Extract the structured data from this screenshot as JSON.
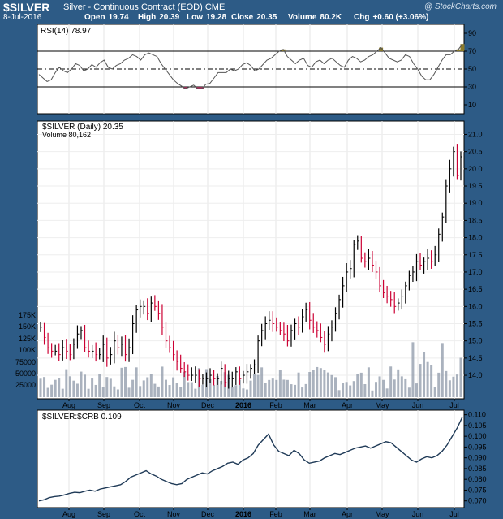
{
  "header": {
    "symbol": "$SILVER",
    "description": "Silver - Continuous Contract (EOD)",
    "exchange": "CME",
    "watermark": "@ StockCharts.com",
    "date": "8-Jul-2016",
    "open_label": "Open",
    "open": "19.74",
    "high_label": "High",
    "high": "20.39",
    "low_label": "Low",
    "low": "19.28",
    "close_label": "Close",
    "close": "20.35",
    "volume_label": "Volume",
    "volume": "80.2K",
    "chg_label": "Chg",
    "chg": "+0.60 (+3.06%)"
  },
  "colors": {
    "background": "#2d5b86",
    "up": "#000000",
    "down": "#cc0033",
    "volume": "#8e98a8",
    "rsi_over": "#8a7a2a",
    "rsi_under": "#a0305a",
    "ratio_line": "#1f3a57"
  },
  "chart_data": [
    {
      "panel": "rsi",
      "type": "line",
      "title": "RSI(14) 78.97",
      "ylim": [
        0,
        100
      ],
      "yticks": [
        "90",
        "70",
        "50",
        "30",
        "10"
      ],
      "reference_lines": [
        70,
        50,
        30
      ],
      "series": [
        {
          "name": "RSI(14)",
          "values": [
            44,
            40,
            36,
            38,
            46,
            52,
            48,
            46,
            50,
            56,
            54,
            48,
            50,
            55,
            52,
            57,
            60,
            52,
            50,
            54,
            56,
            60,
            62,
            66,
            64,
            60,
            66,
            68,
            66,
            64,
            56,
            50,
            44,
            38,
            34,
            31,
            28,
            30,
            32,
            28,
            28,
            33,
            34,
            40,
            46,
            46,
            46,
            50,
            48,
            50,
            55,
            57,
            54,
            48,
            50,
            55,
            60,
            62,
            66,
            70,
            72,
            64,
            60,
            56,
            60,
            62,
            54,
            52,
            58,
            60,
            56,
            60,
            62,
            58,
            54,
            52,
            60,
            64,
            62,
            58,
            60,
            64,
            66,
            70,
            74,
            68,
            62,
            60,
            58,
            60,
            66,
            64,
            56,
            50,
            42,
            38,
            38,
            44,
            52,
            60,
            66,
            66,
            70,
            72,
            78
          ]
        }
      ],
      "xticks": [
        "Aug",
        "Sep",
        "Oct",
        "Nov",
        "Dec",
        "2016",
        "Feb",
        "Mar",
        "Apr",
        "May",
        "Jun",
        "Jul"
      ]
    },
    {
      "panel": "price",
      "type": "ohlc",
      "title": "$SILVER (Daily) 20.35",
      "ylim": [
        13.6,
        21.2
      ],
      "yticks": [
        "21.0",
        "20.5",
        "20.0",
        "19.5",
        "19.0",
        "18.5",
        "18.0",
        "17.5",
        "17.0",
        "16.5",
        "16.0",
        "15.5",
        "15.0",
        "14.5",
        "14.0"
      ],
      "xticks": [
        "Aug",
        "Sep",
        "Oct",
        "Nov",
        "Dec",
        "2016",
        "Feb",
        "Mar",
        "Apr",
        "May",
        "Jun",
        "Jul"
      ],
      "close": [
        15.4,
        15.1,
        14.8,
        14.7,
        14.7,
        14.6,
        14.8,
        14.7,
        14.6,
        14.9,
        15.2,
        15.3,
        14.8,
        14.7,
        14.7,
        14.6,
        14.6,
        14.9,
        14.5,
        14.6,
        15.0,
        14.8,
        14.9,
        14.6,
        14.8,
        15.5,
        15.9,
        16.0,
        16.0,
        15.8,
        16.1,
        16.0,
        15.8,
        15.4,
        15.0,
        14.8,
        14.6,
        14.4,
        14.2,
        14.1,
        14.0,
        14.0,
        14.0,
        13.9,
        13.9,
        13.9,
        14.0,
        13.9,
        13.9,
        14.2,
        13.8,
        13.9,
        13.9,
        14.1,
        13.9,
        14.0,
        14.1,
        14.2,
        14.3,
        15.0,
        15.3,
        15.5,
        15.6,
        15.5,
        15.4,
        15.3,
        15.2,
        15.0,
        15.3,
        15.5,
        15.4,
        15.7,
        15.9,
        15.6,
        15.4,
        15.3,
        15.1,
        14.9,
        15.2,
        15.4,
        15.8,
        16.2,
        16.6,
        17.0,
        17.1,
        17.8,
        17.9,
        17.4,
        17.3,
        17.4,
        17.2,
        17.0,
        16.6,
        16.4,
        16.3,
        16.2,
        16.0,
        16.1,
        16.3,
        16.6,
        16.9,
        17.0,
        17.3,
        17.2,
        17.3,
        17.4,
        17.3,
        17.5,
        18.1,
        18.6,
        19.5,
        20.0,
        20.5,
        19.8,
        20.35
      ],
      "volume": {
        "label": "Volume 80,162",
        "ylim": [
          0,
          175000
        ],
        "yticks": [
          "175K",
          "150K",
          "125K",
          "100K",
          "75000",
          "50000",
          "25000"
        ]
      }
    },
    {
      "panel": "ratio",
      "type": "line",
      "title": "$SILVER:$CRB 0.109",
      "ylim": [
        0.068,
        0.111
      ],
      "yticks": [
        "0.110",
        "0.105",
        "0.100",
        "0.095",
        "0.090",
        "0.085",
        "0.080",
        "0.075",
        "0.070"
      ],
      "xticks": [
        "Aug",
        "Sep",
        "Oct",
        "Nov",
        "Dec",
        "2016",
        "Feb",
        "Mar",
        "Apr",
        "May",
        "Jun",
        "Jul"
      ],
      "series": [
        {
          "name": "$SILVER:$CRB",
          "values": [
            0.07,
            0.0705,
            0.0715,
            0.072,
            0.0722,
            0.0728,
            0.0735,
            0.074,
            0.0738,
            0.0745,
            0.075,
            0.0745,
            0.0755,
            0.076,
            0.0765,
            0.077,
            0.0775,
            0.079,
            0.081,
            0.082,
            0.083,
            0.084,
            0.0825,
            0.0815,
            0.08,
            0.079,
            0.078,
            0.0775,
            0.078,
            0.08,
            0.081,
            0.082,
            0.083,
            0.0825,
            0.084,
            0.085,
            0.086,
            0.0875,
            0.088,
            0.087,
            0.089,
            0.09,
            0.092,
            0.096,
            0.0985,
            0.101,
            0.096,
            0.093,
            0.092,
            0.091,
            0.0935,
            0.092,
            0.089,
            0.0875,
            0.088,
            0.0885,
            0.09,
            0.091,
            0.092,
            0.0915,
            0.0925,
            0.0935,
            0.0945,
            0.095,
            0.0955,
            0.0945,
            0.0955,
            0.0965,
            0.0975,
            0.097,
            0.095,
            0.093,
            0.091,
            0.089,
            0.088,
            0.0895,
            0.0905,
            0.09,
            0.091,
            0.093,
            0.096,
            0.1,
            0.104,
            0.109
          ]
        }
      ]
    }
  ]
}
